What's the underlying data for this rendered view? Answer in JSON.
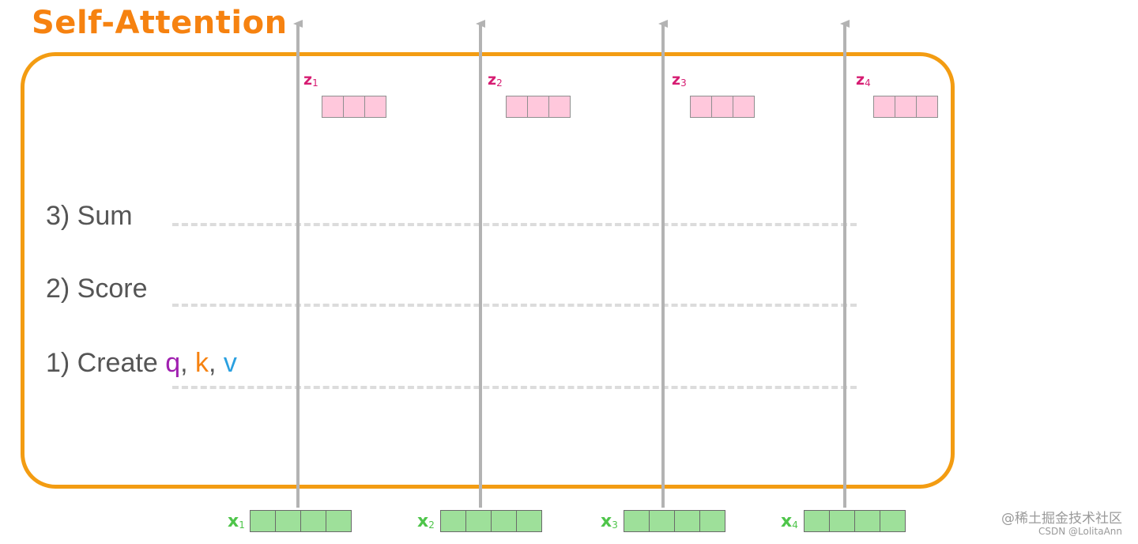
{
  "title": "Self-Attention",
  "steps": {
    "sum": "3) Sum",
    "score": "2) Score",
    "create_prefix": "1) Create ",
    "q": "q",
    "sep1": ", ",
    "k": "k",
    "sep2": ", ",
    "v": "v"
  },
  "outputs": [
    {
      "base": "z",
      "sub": "1"
    },
    {
      "base": "z",
      "sub": "2"
    },
    {
      "base": "z",
      "sub": "3"
    },
    {
      "base": "z",
      "sub": "4"
    }
  ],
  "inputs": [
    {
      "base": "x",
      "sub": "1"
    },
    {
      "base": "x",
      "sub": "2"
    },
    {
      "base": "x",
      "sub": "3"
    },
    {
      "base": "x",
      "sub": "4"
    }
  ],
  "colors": {
    "accent_orange": "#f39c12",
    "z_label": "#d61c72",
    "z_vector": "#ffc8dc",
    "x_label": "#4ec54a",
    "x_vector": "#9ee09a",
    "q_color": "#a020b0",
    "k_color": "#f68210",
    "v_color": "#2aa0e0",
    "arrow": "#b3b3b3"
  },
  "watermark": {
    "line1": "@稀土掘金技术社区",
    "line2": "CSDN @LolitaAnn"
  }
}
